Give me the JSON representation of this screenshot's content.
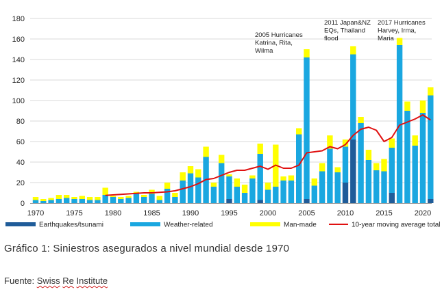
{
  "chart_data": {
    "type": "bar",
    "stacked": true,
    "title": "",
    "xlabel": "",
    "ylabel": "",
    "ylim": [
      0,
      180
    ],
    "y_ticks": [
      0,
      20,
      40,
      60,
      80,
      100,
      120,
      140,
      160,
      180
    ],
    "x_ticks": [
      "1970",
      "1975",
      "1980",
      "1985",
      "1990",
      "1995",
      "2000",
      "2005",
      "2010",
      "2015",
      "2020"
    ],
    "grid": true,
    "legend_position": "bottom",
    "x": [
      1970,
      1971,
      1972,
      1973,
      1974,
      1975,
      1976,
      1977,
      1978,
      1979,
      1980,
      1981,
      1982,
      1983,
      1984,
      1985,
      1986,
      1987,
      1988,
      1989,
      1990,
      1991,
      1992,
      1993,
      1994,
      1995,
      1996,
      1997,
      1998,
      1999,
      2000,
      2001,
      2002,
      2003,
      2004,
      2005,
      2006,
      2007,
      2008,
      2009,
      2010,
      2011,
      2012,
      2013,
      2014,
      2015,
      2016,
      2017,
      2018,
      2019,
      2020,
      2021
    ],
    "series": [
      {
        "name": "Earthquakes/tsunami",
        "color": "#1f5c99",
        "values": [
          0,
          0,
          0,
          0,
          0,
          0,
          0,
          0,
          0,
          0,
          0,
          0,
          0,
          0,
          0,
          0,
          0,
          0,
          0,
          0,
          0,
          0,
          0,
          0,
          0,
          4,
          0,
          0,
          0,
          3,
          0,
          0,
          0,
          0,
          0,
          4,
          0,
          0,
          0,
          0,
          20,
          62,
          0,
          0,
          0,
          0,
          10,
          0,
          0,
          0,
          0,
          4
        ]
      },
      {
        "name": "Weather-related",
        "color": "#1aa7e0",
        "values": [
          3,
          2,
          3,
          4,
          5,
          4,
          4,
          3,
          3,
          8,
          6,
          4,
          5,
          9,
          6,
          9,
          3,
          14,
          6,
          22,
          29,
          25,
          45,
          16,
          39,
          22,
          16,
          10,
          24,
          45,
          13,
          16,
          22,
          22,
          67,
          138,
          17,
          31,
          53,
          30,
          35,
          83,
          78,
          42,
          32,
          31,
          44,
          154,
          90,
          56,
          88,
          101
        ]
      },
      {
        "name": "Man-made",
        "color": "#ffff00",
        "values": [
          3,
          2,
          2,
          4,
          3,
          2,
          3,
          3,
          3,
          7,
          1,
          2,
          2,
          2,
          2,
          4,
          4,
          6,
          4,
          8,
          7,
          8,
          10,
          4,
          8,
          2,
          8,
          8,
          3,
          10,
          7,
          41,
          4,
          5,
          6,
          8,
          7,
          8,
          13,
          5,
          7,
          8,
          6,
          10,
          7,
          12,
          9,
          7,
          9,
          10,
          12,
          8
        ]
      },
      {
        "name": "10-year moving average total insured losses",
        "color": "#e01010",
        "type": "line",
        "x": [
          1979,
          1980,
          1981,
          1982,
          1983,
          1984,
          1985,
          1986,
          1987,
          1988,
          1989,
          1990,
          1991,
          1992,
          1993,
          1994,
          1995,
          1996,
          1997,
          1998,
          1999,
          2000,
          2001,
          2002,
          2003,
          2004,
          2005,
          2006,
          2007,
          2008,
          2009,
          2010,
          2011,
          2012,
          2013,
          2014,
          2015,
          2016,
          2017,
          2018,
          2019,
          2020,
          2021
        ],
        "values": [
          7.5,
          8,
          8.5,
          9,
          9.5,
          10,
          10,
          10.5,
          11,
          12,
          14,
          16,
          19,
          23,
          24,
          27,
          30,
          32,
          32,
          34,
          36,
          33,
          37,
          34,
          34,
          37,
          49,
          50,
          51,
          55,
          53,
          57,
          66,
          72,
          74,
          71,
          60,
          64,
          76,
          79,
          82,
          86,
          81
        ]
      }
    ],
    "annotations": [
      {
        "lines": [
          "2005 Hurricanes",
          "Katrina, Rita,",
          "Wilma"
        ]
      },
      {
        "lines": [
          "2011 Japan&NZ",
          "EQs, Thailand",
          "flood"
        ]
      },
      {
        "lines": [
          "2017 Hurricanes",
          "Harvey, Irma,",
          "Maria"
        ]
      }
    ]
  },
  "caption": "Gráfico 1: Siniestros asegurados a nivel mundial desde 1970",
  "source": {
    "label": "Fuente: ",
    "parts": [
      "Swiss",
      " ",
      "Re",
      " ",
      "Institute"
    ]
  }
}
